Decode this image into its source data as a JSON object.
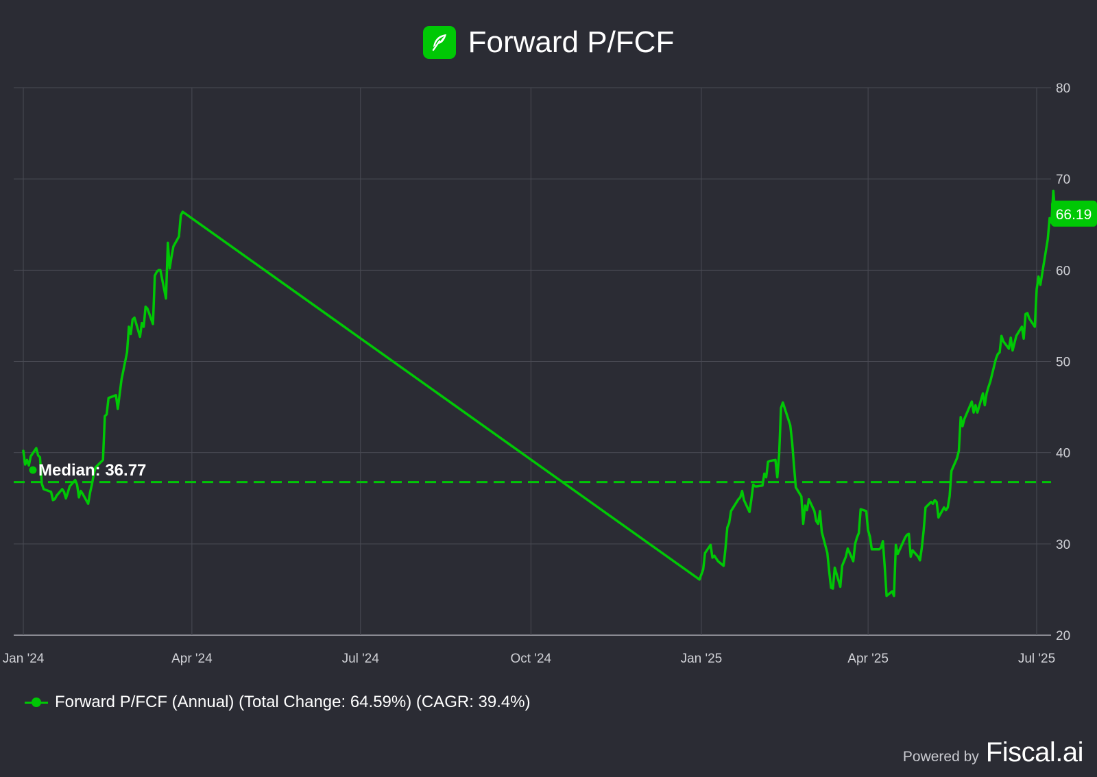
{
  "header": {
    "title": "Forward P/FCF",
    "logo_icon": "feather-icon",
    "logo_color": "#00c805"
  },
  "legend": {
    "label": "Forward P/FCF (Annual) (Total Change: 64.59%) (CAGR: 39.4%)"
  },
  "branding": {
    "powered_by": "Powered by",
    "brand": "Fiscal.ai"
  },
  "colors": {
    "background": "#2b2c34",
    "series": "#00c805",
    "grid": "#4a4b54",
    "text": "#ffffff",
    "tick_text": "#d0d1d6"
  },
  "chart_data": {
    "type": "line",
    "title": "Forward P/FCF",
    "xlabel": "",
    "ylabel": "",
    "ylim": [
      20,
      80
    ],
    "y_ticks": [
      20,
      30,
      40,
      50,
      60,
      70,
      80
    ],
    "y_axis_side": "right",
    "grid": true,
    "legend_position": "bottom-left",
    "x_ticks": [
      {
        "date": "2024-01-01",
        "label": "Jan '24"
      },
      {
        "date": "2024-04-01",
        "label": "Apr '24"
      },
      {
        "date": "2024-07-01",
        "label": "Jul '24"
      },
      {
        "date": "2024-10-01",
        "label": "Oct '24"
      },
      {
        "date": "2025-01-01",
        "label": "Jan '25"
      },
      {
        "date": "2025-04-01",
        "label": "Apr '25"
      },
      {
        "date": "2025-07-01",
        "label": "Jul '25"
      }
    ],
    "median": {
      "label": "Median: 36.77",
      "value": 36.77
    },
    "last_value_label": "66.19",
    "series": [
      {
        "name": "Forward P/FCF (Annual)",
        "color": "#00c805",
        "points": [
          [
            "2024-01-01",
            40.2
          ],
          [
            "2024-01-02",
            38.7
          ],
          [
            "2024-01-03",
            39.2
          ],
          [
            "2024-01-04",
            38.6
          ],
          [
            "2024-01-05",
            39.6
          ],
          [
            "2024-01-08",
            40.5
          ],
          [
            "2024-01-09",
            39.7
          ],
          [
            "2024-01-10",
            39.5
          ],
          [
            "2024-01-11",
            36.6
          ],
          [
            "2024-01-12",
            36.0
          ],
          [
            "2024-01-16",
            35.7
          ],
          [
            "2024-01-17",
            34.8
          ],
          [
            "2024-01-18",
            34.9
          ],
          [
            "2024-01-19",
            35.3
          ],
          [
            "2024-01-22",
            36.0
          ],
          [
            "2024-01-23",
            35.7
          ],
          [
            "2024-01-24",
            35.0
          ],
          [
            "2024-01-25",
            35.6
          ],
          [
            "2024-01-26",
            36.3
          ],
          [
            "2024-01-29",
            37.0
          ],
          [
            "2024-01-30",
            36.5
          ],
          [
            "2024-01-31",
            35.1
          ],
          [
            "2024-02-01",
            35.8
          ],
          [
            "2024-02-02",
            35.5
          ],
          [
            "2024-02-05",
            34.4
          ],
          [
            "2024-02-06",
            35.6
          ],
          [
            "2024-02-07",
            36.5
          ],
          [
            "2024-02-08",
            37.6
          ],
          [
            "2024-02-09",
            38.4
          ],
          [
            "2024-02-12",
            39.0
          ],
          [
            "2024-02-13",
            39.2
          ],
          [
            "2024-02-14",
            44.0
          ],
          [
            "2024-02-15",
            44.2
          ],
          [
            "2024-02-16",
            46.0
          ],
          [
            "2024-02-20",
            46.3
          ],
          [
            "2024-02-21",
            44.8
          ],
          [
            "2024-02-22",
            46.4
          ],
          [
            "2024-02-23",
            48.0
          ],
          [
            "2024-02-26",
            51.0
          ],
          [
            "2024-02-27",
            53.8
          ],
          [
            "2024-02-28",
            53.0
          ],
          [
            "2024-02-29",
            54.6
          ],
          [
            "2024-03-01",
            54.8
          ],
          [
            "2024-03-04",
            52.7
          ],
          [
            "2024-03-05",
            54.2
          ],
          [
            "2024-03-06",
            53.8
          ],
          [
            "2024-03-07",
            56.0
          ],
          [
            "2024-03-08",
            55.8
          ],
          [
            "2024-03-11",
            54.1
          ],
          [
            "2024-03-12",
            59.4
          ],
          [
            "2024-03-13",
            59.8
          ],
          [
            "2024-03-14",
            60.0
          ],
          [
            "2024-03-15",
            60.0
          ],
          [
            "2024-03-18",
            56.9
          ],
          [
            "2024-03-19",
            63.0
          ],
          [
            "2024-03-20",
            60.2
          ],
          [
            "2024-03-21",
            61.5
          ],
          [
            "2024-03-22",
            62.6
          ],
          [
            "2024-03-25",
            63.7
          ],
          [
            "2024-03-26",
            66.0
          ],
          [
            "2024-03-27",
            66.4
          ],
          [
            "2024-12-31",
            26.1
          ],
          [
            "2025-01-02",
            27.2
          ],
          [
            "2025-01-03",
            29.0
          ],
          [
            "2025-01-06",
            29.9
          ],
          [
            "2025-01-07",
            28.5
          ],
          [
            "2025-01-08",
            28.7
          ],
          [
            "2025-01-10",
            28.1
          ],
          [
            "2025-01-13",
            27.6
          ],
          [
            "2025-01-14",
            29.5
          ],
          [
            "2025-01-15",
            31.8
          ],
          [
            "2025-01-16",
            32.3
          ],
          [
            "2025-01-17",
            33.6
          ],
          [
            "2025-01-21",
            34.9
          ],
          [
            "2025-01-22",
            35.1
          ],
          [
            "2025-01-23",
            35.8
          ],
          [
            "2025-01-24",
            34.8
          ],
          [
            "2025-01-27",
            33.5
          ],
          [
            "2025-01-28",
            34.9
          ],
          [
            "2025-01-29",
            36.5
          ],
          [
            "2025-01-30",
            36.3
          ],
          [
            "2025-01-31",
            36.3
          ],
          [
            "2025-02-03",
            36.4
          ],
          [
            "2025-02-04",
            37.7
          ],
          [
            "2025-02-05",
            37.3
          ],
          [
            "2025-02-06",
            39.0
          ],
          [
            "2025-02-07",
            39.1
          ],
          [
            "2025-02-10",
            39.2
          ],
          [
            "2025-02-11",
            37.3
          ],
          [
            "2025-02-12",
            39.8
          ],
          [
            "2025-02-13",
            44.9
          ],
          [
            "2025-02-14",
            45.5
          ],
          [
            "2025-02-18",
            43.0
          ],
          [
            "2025-02-19",
            41.2
          ],
          [
            "2025-02-20",
            38.6
          ],
          [
            "2025-02-21",
            36.2
          ],
          [
            "2025-02-24",
            35.2
          ],
          [
            "2025-02-25",
            32.2
          ],
          [
            "2025-02-26",
            34.2
          ],
          [
            "2025-02-27",
            33.7
          ],
          [
            "2025-02-28",
            34.9
          ],
          [
            "2025-03-03",
            33.6
          ],
          [
            "2025-03-04",
            32.5
          ],
          [
            "2025-03-05",
            32.2
          ],
          [
            "2025-03-06",
            33.6
          ],
          [
            "2025-03-07",
            31.3
          ],
          [
            "2025-03-10",
            29.0
          ],
          [
            "2025-03-11",
            27.0
          ],
          [
            "2025-03-12",
            25.2
          ],
          [
            "2025-03-13",
            25.1
          ],
          [
            "2025-03-14",
            27.4
          ],
          [
            "2025-03-17",
            25.3
          ],
          [
            "2025-03-18",
            27.6
          ],
          [
            "2025-03-20",
            28.6
          ],
          [
            "2025-03-21",
            29.5
          ],
          [
            "2025-03-24",
            28.1
          ],
          [
            "2025-03-25",
            30.0
          ],
          [
            "2025-03-26",
            30.7
          ],
          [
            "2025-03-27",
            31.2
          ],
          [
            "2025-03-28",
            33.8
          ],
          [
            "2025-03-31",
            33.6
          ],
          [
            "2025-04-01",
            31.5
          ],
          [
            "2025-04-02",
            30.8
          ],
          [
            "2025-04-03",
            29.4
          ],
          [
            "2025-04-04",
            29.4
          ],
          [
            "2025-04-07",
            29.4
          ],
          [
            "2025-04-08",
            29.6
          ],
          [
            "2025-04-09",
            30.3
          ],
          [
            "2025-04-10",
            27.5
          ],
          [
            "2025-04-11",
            24.3
          ],
          [
            "2025-04-14",
            24.8
          ],
          [
            "2025-04-15",
            24.3
          ],
          [
            "2025-04-16",
            29.9
          ],
          [
            "2025-04-17",
            28.9
          ],
          [
            "2025-04-21",
            30.7
          ],
          [
            "2025-04-22",
            31.0
          ],
          [
            "2025-04-23",
            31.1
          ],
          [
            "2025-04-24",
            28.6
          ],
          [
            "2025-04-25",
            29.3
          ],
          [
            "2025-04-28",
            28.6
          ],
          [
            "2025-04-29",
            28.2
          ],
          [
            "2025-04-30",
            29.6
          ],
          [
            "2025-05-01",
            31.5
          ],
          [
            "2025-05-02",
            34.0
          ],
          [
            "2025-05-05",
            34.6
          ],
          [
            "2025-05-06",
            34.4
          ],
          [
            "2025-05-07",
            34.8
          ],
          [
            "2025-05-08",
            34.6
          ],
          [
            "2025-05-09",
            32.9
          ],
          [
            "2025-05-12",
            34.0
          ],
          [
            "2025-05-13",
            33.7
          ],
          [
            "2025-05-14",
            34.0
          ],
          [
            "2025-05-15",
            35.2
          ],
          [
            "2025-05-16",
            38.0
          ],
          [
            "2025-05-19",
            39.4
          ],
          [
            "2025-05-20",
            40.2
          ],
          [
            "2025-05-21",
            43.9
          ],
          [
            "2025-05-22",
            42.9
          ],
          [
            "2025-05-23",
            43.7
          ],
          [
            "2025-05-27",
            45.6
          ],
          [
            "2025-05-28",
            44.4
          ],
          [
            "2025-05-29",
            45.2
          ],
          [
            "2025-05-30",
            44.4
          ],
          [
            "2025-06-02",
            46.5
          ],
          [
            "2025-06-03",
            45.2
          ],
          [
            "2025-06-04",
            46.5
          ],
          [
            "2025-06-05",
            47.2
          ],
          [
            "2025-06-06",
            47.8
          ],
          [
            "2025-06-09",
            50.3
          ],
          [
            "2025-06-10",
            50.8
          ],
          [
            "2025-06-11",
            51.0
          ],
          [
            "2025-06-12",
            52.8
          ],
          [
            "2025-06-13",
            52.2
          ],
          [
            "2025-06-16",
            51.4
          ],
          [
            "2025-06-17",
            52.6
          ],
          [
            "2025-06-18",
            51.2
          ],
          [
            "2025-06-20",
            52.8
          ],
          [
            "2025-06-23",
            53.8
          ],
          [
            "2025-06-24",
            52.5
          ],
          [
            "2025-06-25",
            55.2
          ],
          [
            "2025-06-26",
            55.3
          ],
          [
            "2025-06-27",
            54.7
          ],
          [
            "2025-06-30",
            53.8
          ],
          [
            "2025-07-01",
            57.9
          ],
          [
            "2025-07-02",
            59.3
          ],
          [
            "2025-07-03",
            58.4
          ],
          [
            "2025-07-07",
            63.4
          ],
          [
            "2025-07-08",
            65.7
          ],
          [
            "2025-07-09",
            65.2
          ],
          [
            "2025-07-10",
            68.7
          ],
          [
            "2025-07-11",
            66.2
          ]
        ]
      }
    ]
  }
}
